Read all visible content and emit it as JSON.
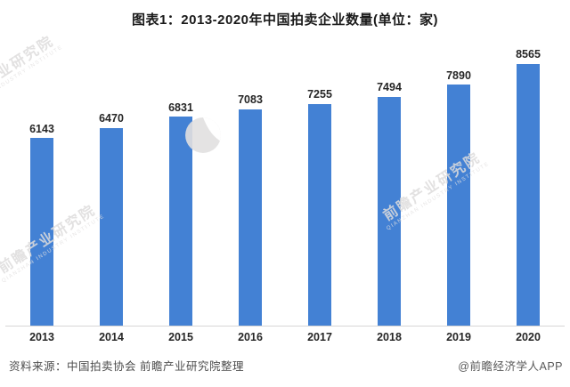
{
  "title": "图表1：2013-2020年中国拍卖企业数量(单位：家)",
  "chart_data": {
    "type": "bar",
    "title": "图表1：2013-2020年中国拍卖企业数量(单位：家)",
    "categories": [
      "2013",
      "2014",
      "2015",
      "2016",
      "2017",
      "2018",
      "2019",
      "2020"
    ],
    "values": [
      6143,
      6470,
      6831,
      7083,
      7255,
      7494,
      7890,
      8565
    ],
    "unit": "家",
    "xlabel": "",
    "ylabel": "",
    "ylim": [
      0,
      9200
    ],
    "grid": false,
    "legend": false,
    "value_labels_shown": true,
    "bar_color": "#4381d4",
    "label_color": "#262626",
    "axis_line_color": "#d8d6d6"
  },
  "footer": {
    "source": "资料来源：中国拍卖协会 前瞻产业研究院整理",
    "credit": "@前瞻经济学人APP"
  },
  "watermarks": {
    "text": "前瞻产业研究院",
    "subtext": "QIANZHAN INDUSTRY INSTITUTE",
    "color": "#dedcdc",
    "logo": "qianzhan-logo"
  }
}
